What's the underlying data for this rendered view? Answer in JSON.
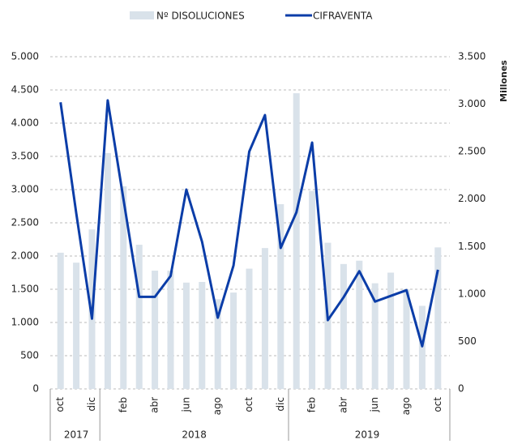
{
  "chart_data": {
    "type": "bar-line",
    "y2label": "Millones",
    "categories": [
      "oct",
      null,
      "dic",
      null,
      "feb",
      null,
      "abr",
      null,
      "jun",
      null,
      "ago",
      null,
      "oct",
      null,
      "dic",
      null,
      "feb",
      null,
      "abr",
      null,
      "jun",
      null,
      "ago",
      null,
      "oct"
    ],
    "years": [
      {
        "label": "2017",
        "months": 3
      },
      {
        "label": "2018",
        "months": 12
      },
      {
        "label": "2019",
        "months": 10
      }
    ],
    "series": [
      {
        "name": "Nº DISOLUCIONES",
        "type": "bar",
        "color": "#d9e2ea",
        "axis": "y",
        "values": [
          2050,
          1900,
          2400,
          3550,
          3050,
          2170,
          1780,
          1780,
          1600,
          1610,
          1350,
          1450,
          1810,
          2120,
          2780,
          4450,
          2980,
          2200,
          1880,
          1930,
          1590,
          1750,
          1500,
          1250,
          2130
        ]
      },
      {
        "name": "CIFRAVENTA",
        "type": "line",
        "color": "#0b3da8",
        "axis": "y2",
        "values": [
          3020,
          1850,
          740,
          3040,
          2000,
          970,
          970,
          1190,
          2100,
          1550,
          750,
          1300,
          2500,
          2885,
          1485,
          1860,
          2595,
          725,
          965,
          1240,
          920,
          980,
          1040,
          450,
          1255
        ]
      }
    ],
    "ylim": [
      0,
      5000
    ],
    "yticks": [
      0,
      500,
      {
        "value": 1000,
        "label": "1.000"
      },
      {
        "value": 1500,
        "label": "1.500"
      },
      {
        "value": 2000,
        "label": "2.000"
      },
      {
        "value": 2500,
        "label": "2.500"
      },
      {
        "value": 3000,
        "label": "3.000"
      },
      {
        "value": 3500,
        "label": "3.500"
      },
      {
        "value": 4000,
        "label": "4.000"
      },
      {
        "value": 4500,
        "label": "4.500"
      },
      {
        "value": 5000,
        "label": "5.000"
      }
    ],
    "y2lim": [
      0,
      3500
    ],
    "y2ticks": [
      0,
      500,
      {
        "value": 1000,
        "label": "1.000"
      },
      {
        "value": 1500,
        "label": "1.500"
      },
      {
        "value": 2000,
        "label": "2.000"
      },
      {
        "value": 2500,
        "label": "2.500"
      },
      {
        "value": 3000,
        "label": "3.000"
      },
      {
        "value": 3500,
        "label": "3.500"
      }
    ],
    "grid": true
  }
}
